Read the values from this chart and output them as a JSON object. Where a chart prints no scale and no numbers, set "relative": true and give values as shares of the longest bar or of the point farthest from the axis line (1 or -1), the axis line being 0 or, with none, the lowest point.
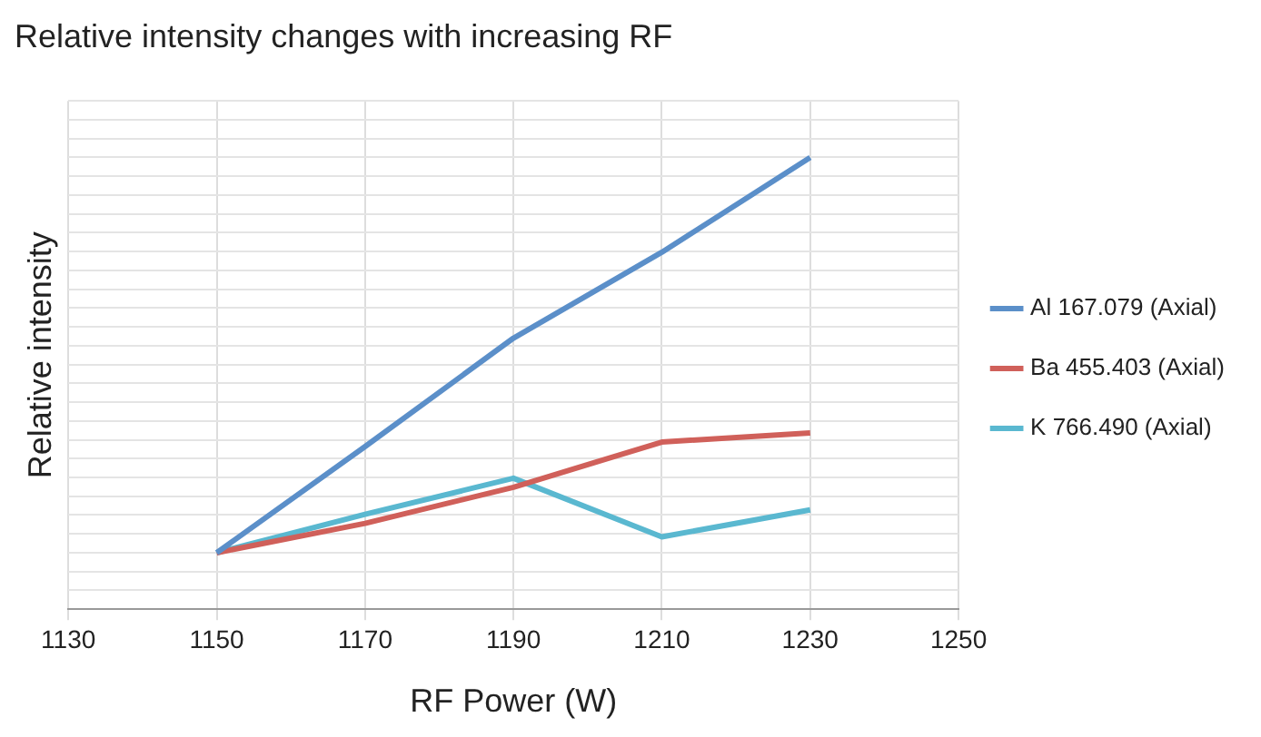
{
  "chart_data": {
    "type": "line",
    "title": "Relative intensity changes with increasing RF",
    "xlabel": "RF Power (W)",
    "ylabel": "Relative intensity",
    "relative": true,
    "x": [
      1150,
      1170,
      1190,
      1210,
      1230
    ],
    "xlim": [
      1130,
      1250
    ],
    "xticks": [
      1130,
      1150,
      1170,
      1190,
      1210,
      1230,
      1250
    ],
    "series": [
      {
        "name": "Al 167.079 (Axial)",
        "color": "#5b8fc9",
        "values": [
          0.125,
          0.36,
          0.6,
          0.79,
          1
        ]
      },
      {
        "name": "Ba 455.403 (Axial)",
        "color": "#d0605a",
        "values": [
          0.125,
          0.19,
          0.27,
          0.37,
          0.39
        ]
      },
      {
        "name": "K 766.490 (Axial)",
        "color": "#5ab8d0",
        "values": [
          0.125,
          0.21,
          0.29,
          0.16,
          0.22
        ]
      }
    ],
    "grid": true,
    "legend": "right",
    "marker": "none",
    "line_style": "solid"
  }
}
